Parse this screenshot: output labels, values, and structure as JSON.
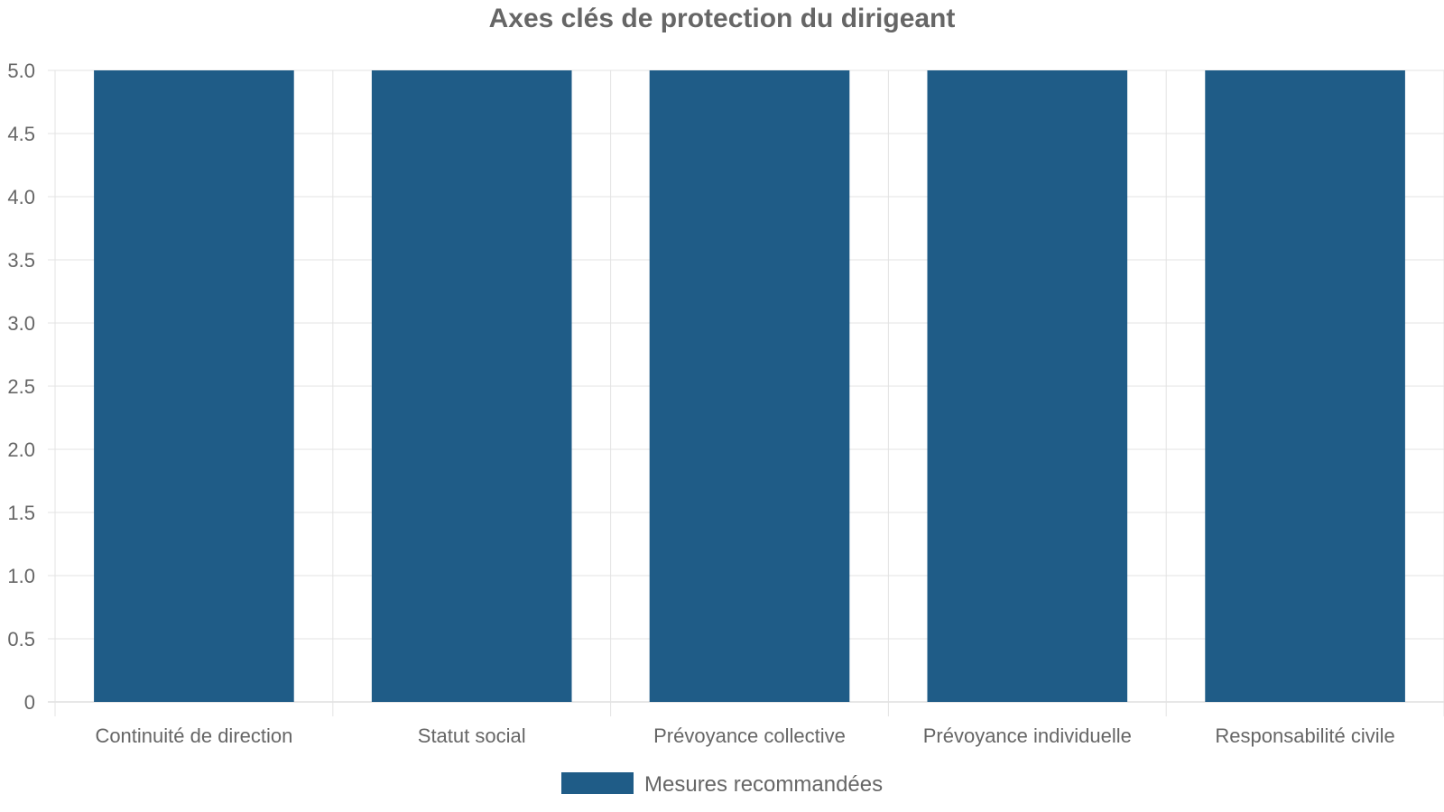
{
  "chart_data": {
    "type": "bar",
    "title": "Axes clés de protection du dirigeant",
    "categories": [
      "Continuité de direction",
      "Statut social",
      "Prévoyance collective",
      "Prévoyance individuelle",
      "Responsabilité civile"
    ],
    "series": [
      {
        "name": "Mesures recommandées",
        "values": [
          5,
          5,
          5,
          5,
          5
        ],
        "color": "#1f5c87"
      }
    ],
    "ylim": [
      0,
      5
    ],
    "yticks": [
      "0",
      "0.5",
      "1.0",
      "1.5",
      "2.0",
      "2.5",
      "3.0",
      "3.5",
      "4.0",
      "4.5",
      "5.0"
    ],
    "xlabel": "",
    "ylabel": "",
    "grid": true,
    "legend": "bottom"
  }
}
